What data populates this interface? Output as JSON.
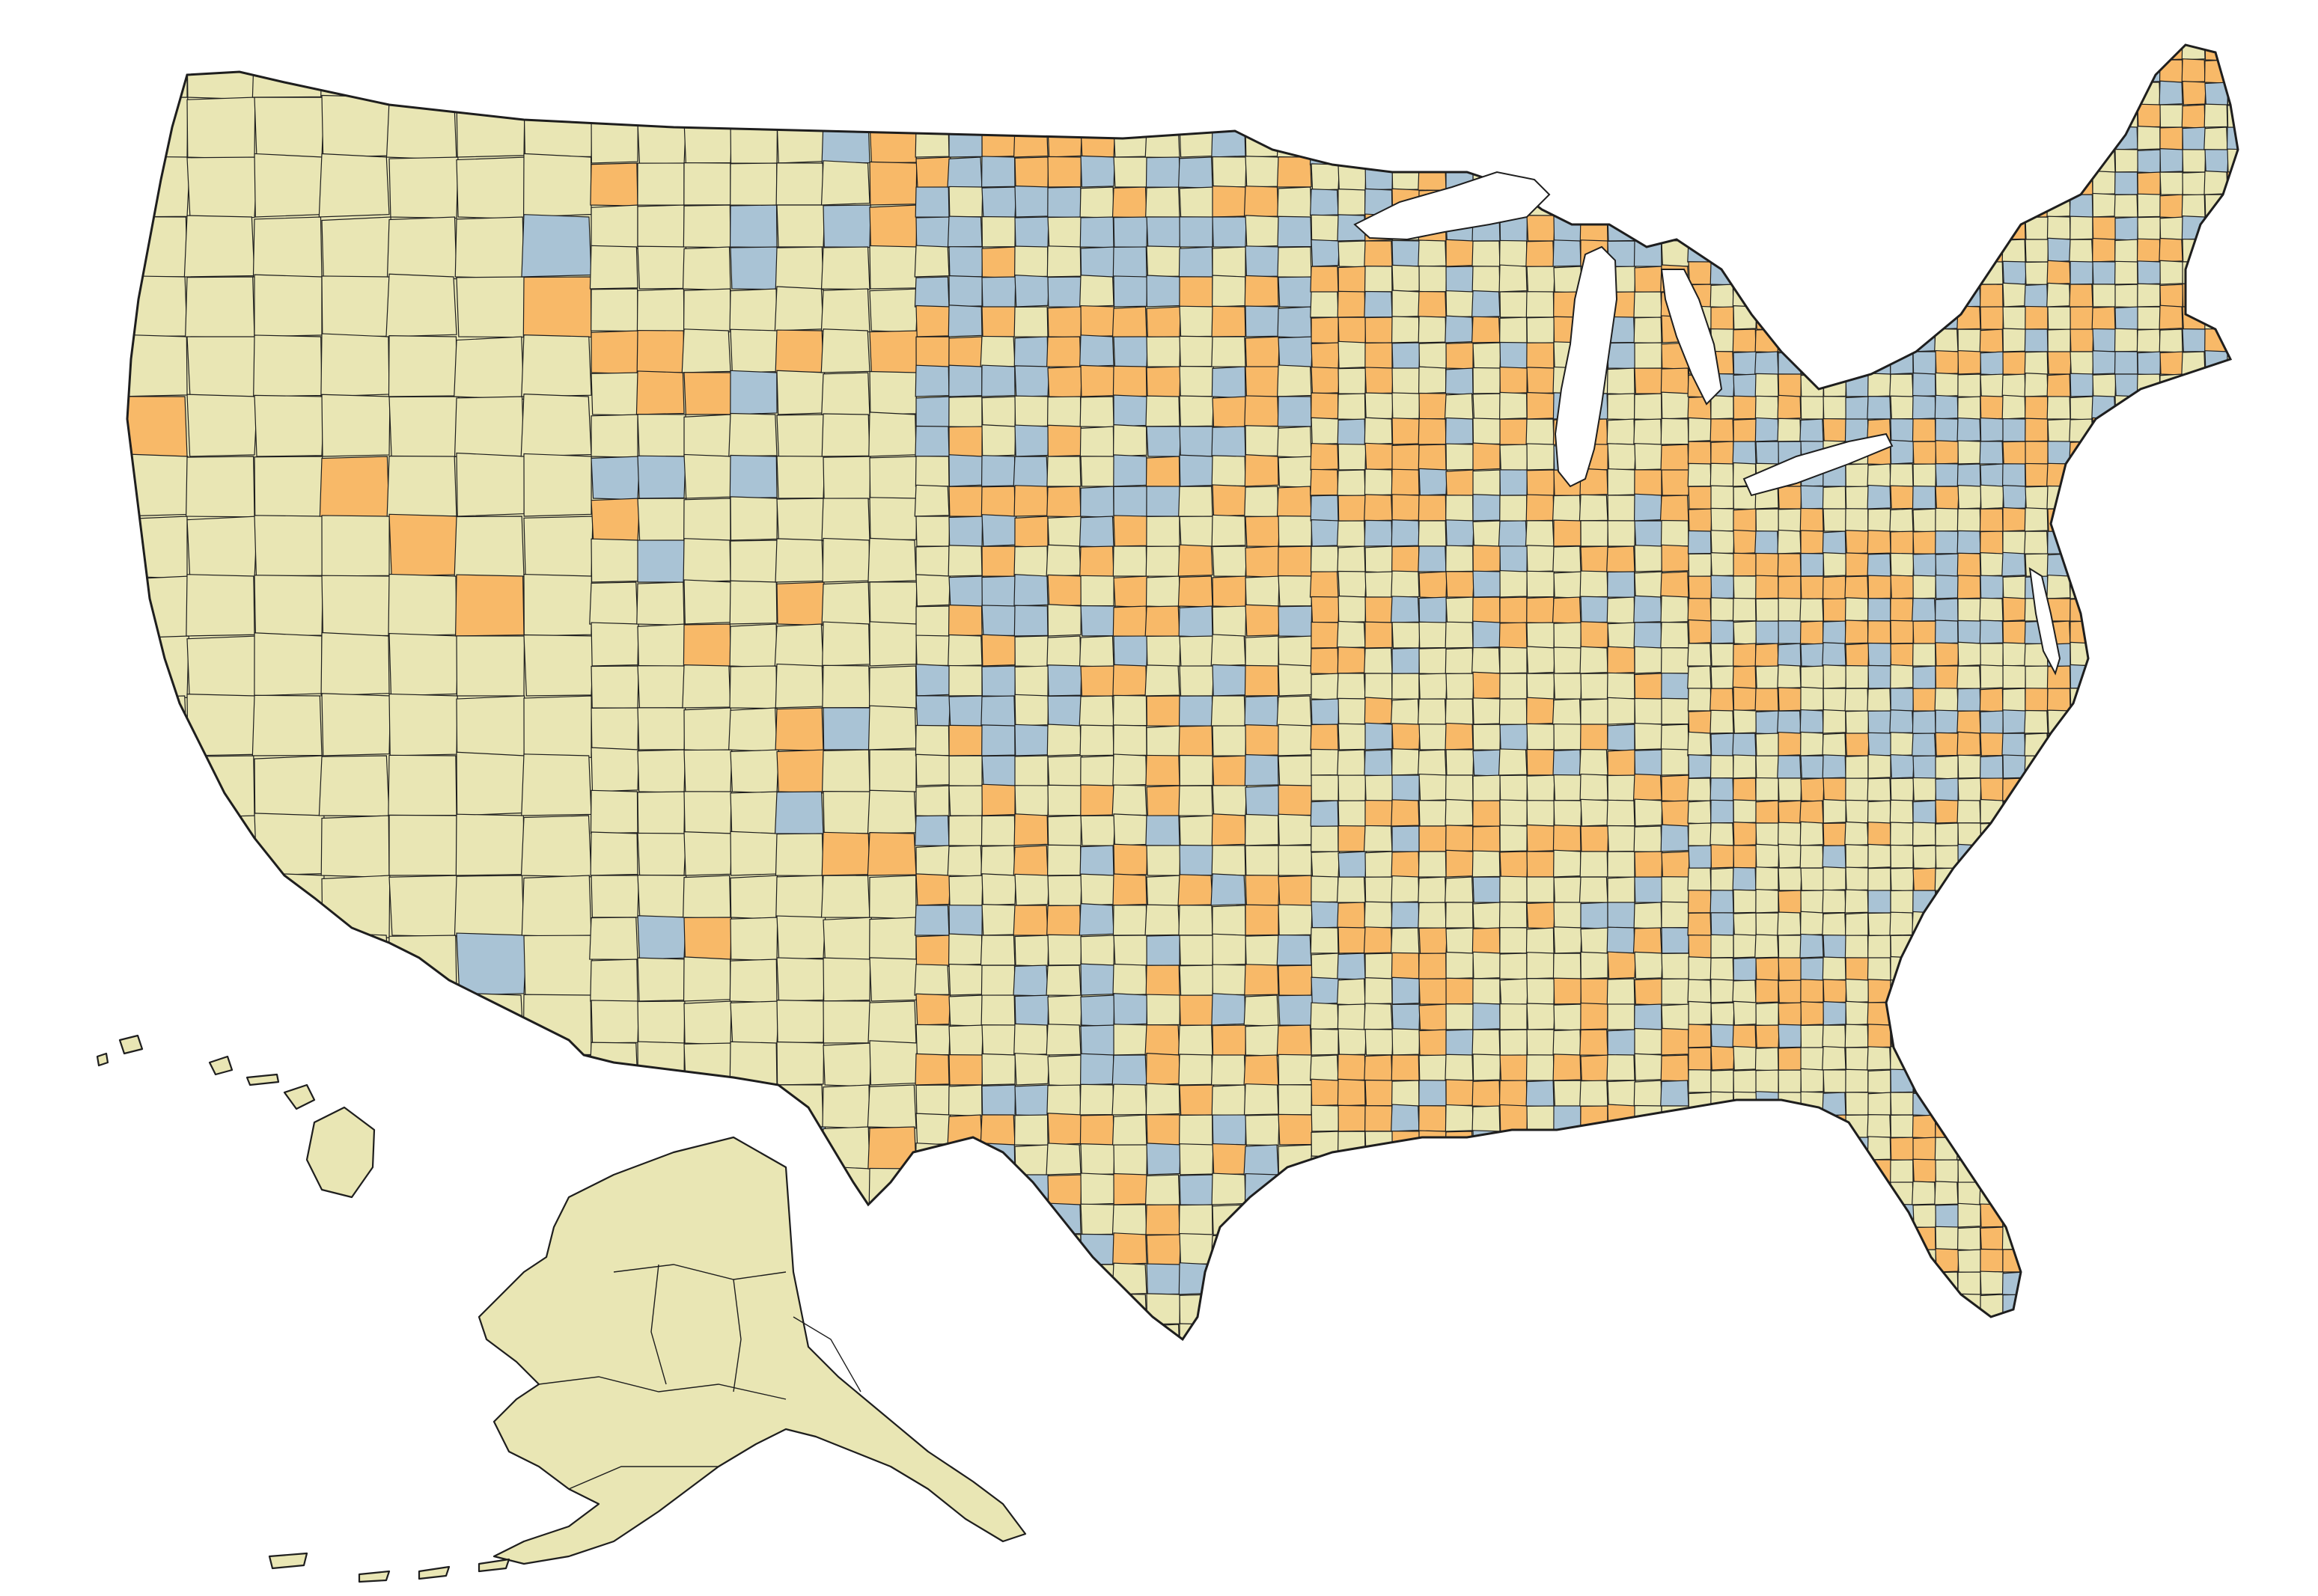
{
  "map": {
    "type": "choropleth",
    "colors": {
      "base": "#e9e6b4",
      "orange": "#f8b968",
      "blue": "#a9c3d5",
      "border": "#1e1e1e",
      "background": "#ffffff"
    },
    "categories": [
      "base",
      "orange",
      "blue"
    ],
    "regions": [
      {
        "name": "conterminous-us"
      },
      {
        "name": "alaska"
      },
      {
        "name": "hawaii"
      }
    ]
  }
}
